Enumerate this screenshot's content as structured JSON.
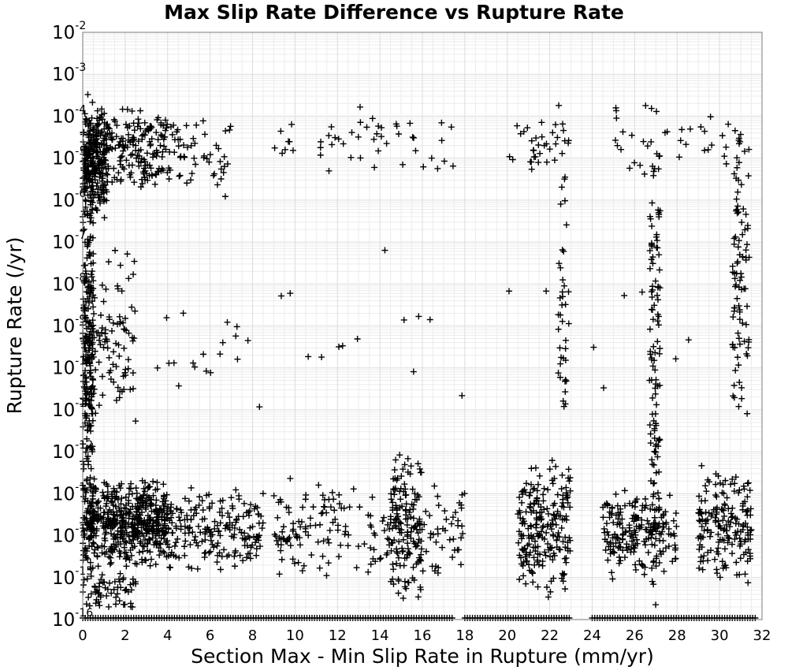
{
  "chart_data": {
    "type": "scatter",
    "title": "Max Slip Rate Difference vs Rupture Rate",
    "xlabel": "Section Max - Min Slip Rate in Rupture (mm/yr)",
    "ylabel": "Rupture Rate (/yr)",
    "xlim": [
      0,
      32
    ],
    "ylim": [
      1e-16,
      0.01
    ],
    "yscale": "log",
    "grid": true,
    "marker": "+",
    "marker_color": "#000000",
    "x_ticks": [
      "0",
      "2",
      "4",
      "6",
      "8",
      "10",
      "12",
      "14",
      "16",
      "18",
      "20",
      "22",
      "24",
      "26",
      "28",
      "30",
      "32"
    ],
    "y_ticks": [
      {
        "base": "10",
        "exp": "-2"
      },
      {
        "base": "10",
        "exp": "-3"
      },
      {
        "base": "10",
        "exp": "-4"
      },
      {
        "base": "10",
        "exp": "-5"
      },
      {
        "base": "10",
        "exp": "-6"
      },
      {
        "base": "10",
        "exp": "-7"
      },
      {
        "base": "10",
        "exp": "-8"
      },
      {
        "base": "10",
        "exp": "-9"
      },
      {
        "base": "10",
        "exp": "-10"
      },
      {
        "base": "10",
        "exp": "-11"
      },
      {
        "base": "10",
        "exp": "-12"
      },
      {
        "base": "10",
        "exp": "-13"
      },
      {
        "base": "10",
        "exp": "-14"
      },
      {
        "base": "10",
        "exp": "-15"
      },
      {
        "base": "10",
        "exp": "-16"
      }
    ],
    "clusters": [
      {
        "x": [
          0,
          0.5
        ],
        "log10_y": [
          -15.8,
          -3.2
        ],
        "n": 260
      },
      {
        "x": [
          0,
          1.2
        ],
        "log10_y": [
          -6.5,
          -3.8
        ],
        "n": 200
      },
      {
        "x": [
          0,
          4
        ],
        "log10_y": [
          -14.8,
          -12.6
        ],
        "n": 520
      },
      {
        "x": [
          0,
          4
        ],
        "log10_y": [
          -5.8,
          -3.7
        ],
        "n": 230
      },
      {
        "x": [
          0,
          2.5
        ],
        "log10_y": [
          -11.5,
          -7
        ],
        "n": 110
      },
      {
        "x": [
          0,
          2.5
        ],
        "log10_y": [
          -15.8,
          -14.8
        ],
        "n": 60
      },
      {
        "x": [
          4,
          8.5
        ],
        "log10_y": [
          -15,
          -12.7
        ],
        "n": 200
      },
      {
        "x": [
          4,
          7
        ],
        "log10_y": [
          -6,
          -4
        ],
        "n": 55
      },
      {
        "x": [
          3.5,
          8
        ],
        "log10_y": [
          -11,
          -8
        ],
        "n": 18
      },
      {
        "x": [
          9,
          18
        ],
        "log10_y": [
          -15.2,
          -12.5
        ],
        "n": 200
      },
      {
        "x": [
          9,
          17.5
        ],
        "log10_y": [
          -5.5,
          -3.6
        ],
        "n": 50
      },
      {
        "x": [
          14.5,
          16
        ],
        "log10_y": [
          -15.7,
          -12
        ],
        "n": 130
      },
      {
        "x": [
          20.5,
          23
        ],
        "log10_y": [
          -15.5,
          -12.1
        ],
        "n": 220
      },
      {
        "x": [
          22.4,
          22.9
        ],
        "log10_y": [
          -12,
          -4
        ],
        "n": 40
      },
      {
        "x": [
          20,
          23
        ],
        "log10_y": [
          -5.6,
          -3.7
        ],
        "n": 35
      },
      {
        "x": [
          24.5,
          28
        ],
        "log10_y": [
          -15.2,
          -12.8
        ],
        "n": 200
      },
      {
        "x": [
          26.7,
          27.2
        ],
        "log10_y": [
          -15.9,
          -4
        ],
        "n": 120
      },
      {
        "x": [
          29,
          31.5
        ],
        "log10_y": [
          -15.2,
          -12.3
        ],
        "n": 180
      },
      {
        "x": [
          30.6,
          31.4
        ],
        "log10_y": [
          -12,
          -3.8
        ],
        "n": 90
      },
      {
        "x": [
          25,
          31
        ],
        "log10_y": [
          -5.5,
          -3.6
        ],
        "n": 40
      },
      {
        "x": [
          8,
          31.5
        ],
        "log10_y": [
          -12,
          -7
        ],
        "n": 25
      }
    ],
    "baseline": {
      "log10_y": -16,
      "x_segments": [
        [
          0,
          17.5
        ],
        [
          18,
          23
        ],
        [
          24,
          31.8
        ]
      ]
    }
  }
}
